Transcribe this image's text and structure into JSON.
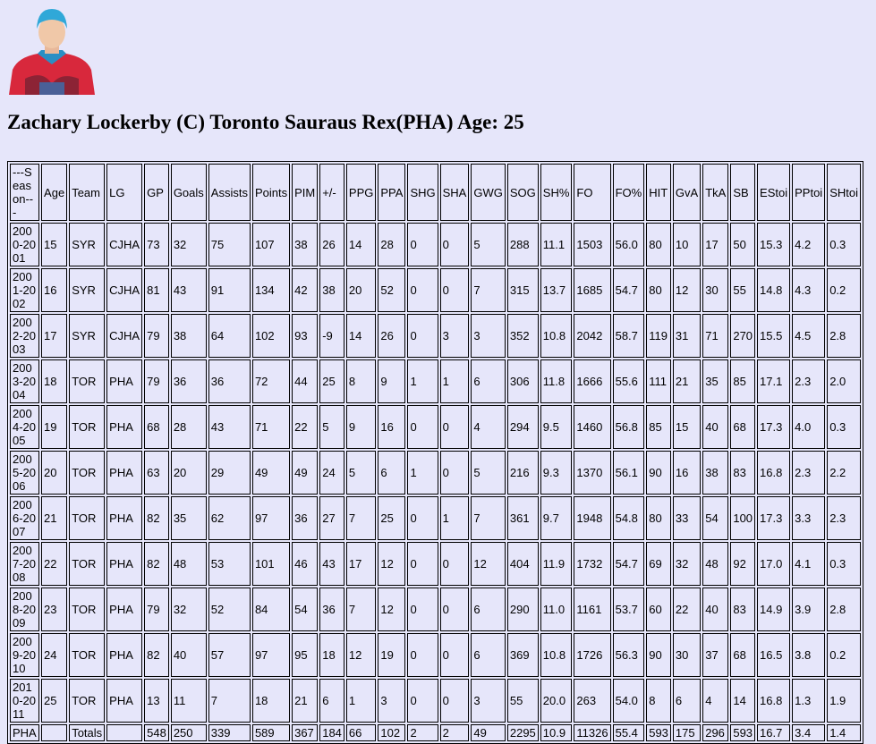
{
  "player": {
    "name": "Zachary Lockerby (C) Toronto Sauraus Rex(PHA) Age: 25"
  },
  "table": {
    "columns": [
      "---Season---",
      "Age",
      "Team",
      "LG",
      "GP",
      "Goals",
      "Assists",
      "Points",
      "PIM",
      "+/-",
      "PPG",
      "PPA",
      "SHG",
      "SHA",
      "GWG",
      "SOG",
      "SH%",
      "FO",
      "FO%",
      "HIT",
      "GvA",
      "TkA",
      "SB",
      "EStoi",
      "PPtoi",
      "SHtoi"
    ],
    "rows": [
      [
        "2000-2001",
        "15",
        "SYR",
        "CJHA",
        "73",
        "32",
        "75",
        "107",
        "38",
        "26",
        "14",
        "28",
        "0",
        "0",
        "5",
        "288",
        "11.1",
        "1503",
        "56.0",
        "80",
        "10",
        "17",
        "50",
        "15.3",
        "4.2",
        "0.3"
      ],
      [
        "2001-2002",
        "16",
        "SYR",
        "CJHA",
        "81",
        "43",
        "91",
        "134",
        "42",
        "38",
        "20",
        "52",
        "0",
        "0",
        "7",
        "315",
        "13.7",
        "1685",
        "54.7",
        "80",
        "12",
        "30",
        "55",
        "14.8",
        "4.3",
        "0.2"
      ],
      [
        "2002-2003",
        "17",
        "SYR",
        "CJHA",
        "79",
        "38",
        "64",
        "102",
        "93",
        "-9",
        "14",
        "26",
        "0",
        "3",
        "3",
        "352",
        "10.8",
        "2042",
        "58.7",
        "119",
        "31",
        "71",
        "270",
        "15.5",
        "4.5",
        "2.8"
      ],
      [
        "2003-2004",
        "18",
        "TOR",
        "PHA",
        "79",
        "36",
        "36",
        "72",
        "44",
        "25",
        "8",
        "9",
        "1",
        "1",
        "6",
        "306",
        "11.8",
        "1666",
        "55.6",
        "111",
        "21",
        "35",
        "85",
        "17.1",
        "2.3",
        "2.0"
      ],
      [
        "2004-2005",
        "19",
        "TOR",
        "PHA",
        "68",
        "28",
        "43",
        "71",
        "22",
        "5",
        "9",
        "16",
        "0",
        "0",
        "4",
        "294",
        "9.5",
        "1460",
        "56.8",
        "85",
        "15",
        "40",
        "68",
        "17.3",
        "4.0",
        "0.3"
      ],
      [
        "2005-2006",
        "20",
        "TOR",
        "PHA",
        "63",
        "20",
        "29",
        "49",
        "49",
        "24",
        "5",
        "6",
        "1",
        "0",
        "5",
        "216",
        "9.3",
        "1370",
        "56.1",
        "90",
        "16",
        "38",
        "83",
        "16.8",
        "2.3",
        "2.2"
      ],
      [
        "2006-2007",
        "21",
        "TOR",
        "PHA",
        "82",
        "35",
        "62",
        "97",
        "36",
        "27",
        "7",
        "25",
        "0",
        "1",
        "7",
        "361",
        "9.7",
        "1948",
        "54.8",
        "80",
        "33",
        "54",
        "100",
        "17.3",
        "3.3",
        "2.3"
      ],
      [
        "2007-2008",
        "22",
        "TOR",
        "PHA",
        "82",
        "48",
        "53",
        "101",
        "46",
        "43",
        "17",
        "12",
        "0",
        "0",
        "12",
        "404",
        "11.9",
        "1732",
        "54.7",
        "69",
        "32",
        "48",
        "92",
        "17.0",
        "4.1",
        "0.3"
      ],
      [
        "2008-2009",
        "23",
        "TOR",
        "PHA",
        "79",
        "32",
        "52",
        "84",
        "54",
        "36",
        "7",
        "12",
        "0",
        "0",
        "6",
        "290",
        "11.0",
        "1161",
        "53.7",
        "60",
        "22",
        "40",
        "83",
        "14.9",
        "3.9",
        "2.8"
      ],
      [
        "2009-2010",
        "24",
        "TOR",
        "PHA",
        "82",
        "40",
        "57",
        "97",
        "95",
        "18",
        "12",
        "19",
        "0",
        "0",
        "6",
        "369",
        "10.8",
        "1726",
        "56.3",
        "90",
        "30",
        "37",
        "68",
        "16.5",
        "3.8",
        "0.2"
      ],
      [
        "2010-2011",
        "25",
        "TOR",
        "PHA",
        "13",
        "11",
        "7",
        "18",
        "21",
        "6",
        "1",
        "3",
        "0",
        "0",
        "3",
        "55",
        "20.0",
        "263",
        "54.0",
        "8",
        "6",
        "4",
        "14",
        "16.8",
        "1.3",
        "1.9"
      ]
    ],
    "totals": [
      "PHA",
      null,
      "Totals",
      null,
      "548",
      "250",
      "339",
      "589",
      "367",
      "184",
      "66",
      "102",
      "2",
      "2",
      "49",
      "2295",
      "10.9",
      "11326",
      "55.4",
      "593",
      "175",
      "296",
      "593",
      "16.7",
      "3.4",
      "1.4"
    ]
  }
}
